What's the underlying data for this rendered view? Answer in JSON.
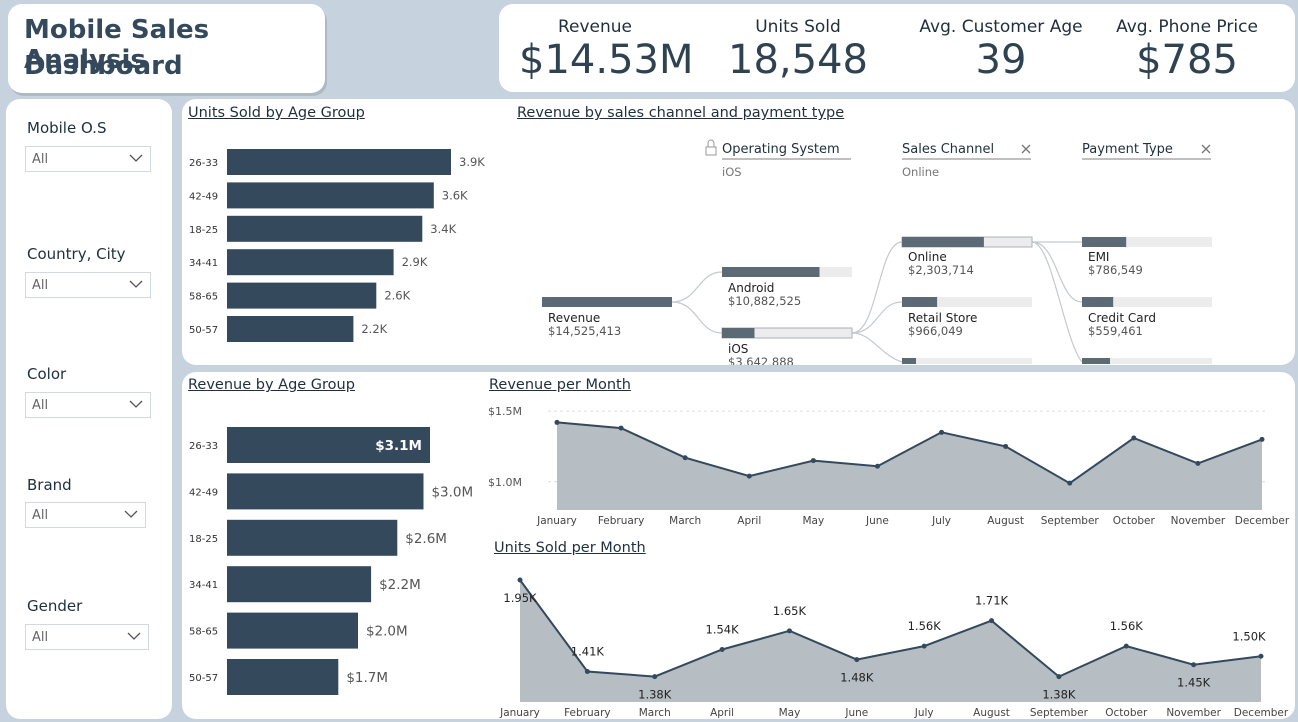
{
  "title": {
    "line1": "Mobile Sales Analysis",
    "line2": "Dashboard"
  },
  "kpis": [
    {
      "label": "Revenue",
      "value": "$14.53M"
    },
    {
      "label": "Units Sold",
      "value": "18,548"
    },
    {
      "label": "Avg. Customer Age",
      "value": "39"
    },
    {
      "label": "Avg. Phone Price",
      "value": "$785"
    }
  ],
  "filters": [
    {
      "label": "Mobile O.S",
      "value": "All"
    },
    {
      "label": "Country, City",
      "value": "All"
    },
    {
      "label": "Color",
      "value": "All"
    },
    {
      "label": "Brand",
      "value": "All"
    },
    {
      "label": "Gender",
      "value": "All"
    }
  ],
  "decomp": {
    "title": "Revenue by sales channel and payment type",
    "levels": [
      {
        "header": "Operating System",
        "selected": "iOS",
        "locked": true
      },
      {
        "header": "Sales Channel",
        "selected": "Online",
        "closable": true
      },
      {
        "header": "Payment Type",
        "selected": "",
        "closable": true
      }
    ],
    "root": {
      "label": "Revenue",
      "value": "$14,525,413"
    },
    "os": [
      {
        "label": "Android",
        "value": "$10,882,525",
        "fraction": 0.75
      },
      {
        "label": "iOS",
        "value": "$3,642,888",
        "fraction": 0.25
      }
    ],
    "channel": [
      {
        "label": "Online",
        "value": "$2,303,714",
        "fraction": 0.63
      },
      {
        "label": "Retail Store",
        "value": "$966,049",
        "fraction": 0.27
      }
    ],
    "payment": [
      {
        "label": "EMI",
        "value": "$786,549",
        "fraction": 0.34
      },
      {
        "label": "Credit Card",
        "value": "$559,461",
        "fraction": 0.24
      }
    ]
  },
  "chart_data": [
    {
      "type": "bar",
      "title": "Units Sold by Age Group",
      "categories": [
        "26-33",
        "42-49",
        "18-25",
        "34-41",
        "58-65",
        "50-57"
      ],
      "values": [
        3900,
        3600,
        3400,
        2900,
        2600,
        2200
      ],
      "data_labels": [
        "3.9K",
        "3.6K",
        "3.4K",
        "2.9K",
        "2.6K",
        "2.2K"
      ],
      "color": "#34495c"
    },
    {
      "type": "bar",
      "title": "Revenue by Age Group",
      "categories": [
        "26-33",
        "42-49",
        "18-25",
        "34-41",
        "58-65",
        "50-57"
      ],
      "values": [
        3.1,
        3.0,
        2.6,
        2.2,
        2.0,
        1.7
      ],
      "data_labels": [
        "$3.1M",
        "$3.0M",
        "$2.6M",
        "$2.2M",
        "$2.0M",
        "$1.7M"
      ],
      "color": "#34495c"
    },
    {
      "type": "area",
      "title": "Revenue per Month",
      "categories": [
        "January",
        "February",
        "March",
        "April",
        "May",
        "June",
        "July",
        "August",
        "September",
        "October",
        "November",
        "December"
      ],
      "values": [
        1.42,
        1.38,
        1.17,
        1.04,
        1.15,
        1.11,
        1.35,
        1.25,
        0.99,
        1.31,
        1.13,
        1.3
      ],
      "y_ticks": [
        "$1.0M",
        "$1.5M"
      ],
      "y_tick_values": [
        1.0,
        1.5
      ],
      "ylim": [
        0.8,
        1.6
      ],
      "grid": true,
      "color": "#34495c",
      "fill": "#b6bec4"
    },
    {
      "type": "area",
      "title": "Units Sold per Month",
      "categories": [
        "January",
        "February",
        "March",
        "April",
        "May",
        "June",
        "July",
        "August",
        "September",
        "October",
        "November",
        "December"
      ],
      "values": [
        1.95,
        1.41,
        1.38,
        1.54,
        1.65,
        1.48,
        1.56,
        1.71,
        1.38,
        1.56,
        1.45,
        1.5
      ],
      "data_labels": [
        "1.95K",
        "1.41K",
        "1.38K",
        "1.54K",
        "1.65K",
        "1.48K",
        "1.56K",
        "1.71K",
        "1.38K",
        "1.56K",
        "1.45K",
        "1.50K"
      ],
      "ylim": [
        1.23,
        1.95
      ],
      "grid": false,
      "color": "#34495c",
      "fill": "#b6bec4"
    }
  ]
}
